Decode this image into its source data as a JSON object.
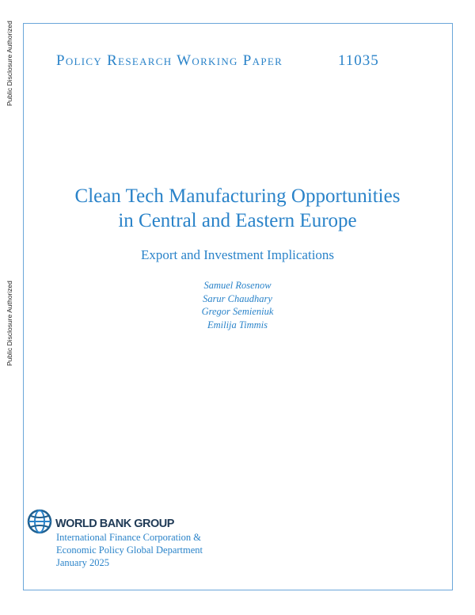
{
  "side_labels": [
    "Public Disclosure Authorized",
    "Public Disclosure Authorized"
  ],
  "series": "Policy Research Working Paper",
  "number": "11035",
  "title_lines": [
    "Clean Tech Manufacturing Opportunities",
    "in Central and Eastern Europe"
  ],
  "subtitle": "Export and Investment Implications",
  "authors": [
    "Samuel Rosenow",
    "Sarur Chaudhary",
    "Gregor Semieniuk",
    "Emilija Timmis"
  ],
  "logo": {
    "text": "WORLD BANK GROUP",
    "icon": "globe-icon"
  },
  "department_lines": [
    "International Finance Corporation &",
    "Economic Policy Global Department"
  ],
  "date": "January 2025",
  "colors": {
    "accent": "#2a83c9",
    "frame": "#6aa6d9",
    "logo_text": "#1f3a56"
  }
}
